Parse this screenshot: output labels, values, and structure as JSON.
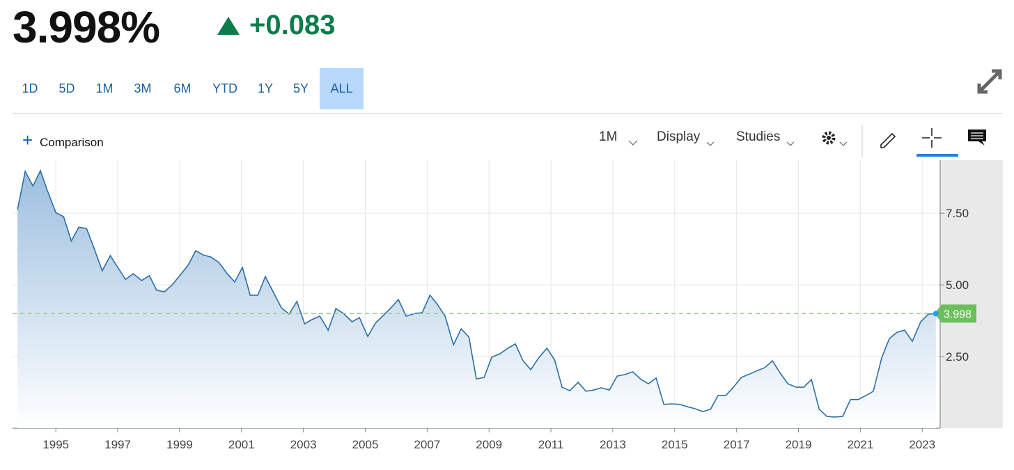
{
  "header": {
    "price": "3.998%",
    "change": "+0.083",
    "ranges": [
      "1D",
      "5D",
      "1M",
      "3M",
      "6M",
      "YTD",
      "1Y",
      "5Y",
      "ALL"
    ],
    "toolbar": {
      "comparison": "Comparison",
      "interval": "1M",
      "display": "Display",
      "studies": "Studies"
    }
  },
  "chart_data": {
    "type": "area",
    "color": "#2a6fa8",
    "x": [
      1993.76,
      1994.01,
      1994.26,
      1994.5,
      1994.73,
      1995.0,
      1995.25,
      1995.5,
      1995.74,
      1995.99,
      1996.24,
      1996.5,
      1996.76,
      1997.0,
      1997.25,
      1997.5,
      1997.77,
      1998.02,
      1998.26,
      1998.51,
      1998.76,
      1999.03,
      1999.28,
      1999.52,
      1999.77,
      2000.02,
      2000.27,
      2000.54,
      2000.78,
      2001.03,
      2001.28,
      2001.53,
      2001.77,
      2002.02,
      2002.29,
      2002.54,
      2002.79,
      2003.04,
      2003.28,
      2003.53,
      2003.8,
      2004.05,
      2004.3,
      2004.57,
      2004.81,
      2005.08,
      2005.33,
      2005.58,
      2005.83,
      2006.07,
      2006.32,
      2006.59,
      2006.84,
      2007.09,
      2007.33,
      2007.58,
      2007.85,
      2008.1,
      2008.35,
      2008.59,
      2008.84,
      2009.09,
      2009.36,
      2009.61,
      2009.85,
      2010.1,
      2010.35,
      2010.6,
      2010.87,
      2011.12,
      2011.36,
      2011.61,
      2011.88,
      2012.13,
      2012.38,
      2012.62,
      2012.89,
      2013.14,
      2013.39,
      2013.64,
      2013.91,
      2014.15,
      2014.4,
      2014.65,
      2014.9,
      2015.17,
      2015.41,
      2015.66,
      2015.91,
      2016.16,
      2016.4,
      2016.65,
      2016.9,
      2017.15,
      2017.42,
      2017.67,
      2017.91,
      2018.16,
      2018.41,
      2018.66,
      2018.93,
      2019.17,
      2019.42,
      2019.67,
      2019.92,
      2020.16,
      2020.43,
      2020.68,
      2020.93,
      2021.18,
      2021.42,
      2021.69,
      2021.94,
      2022.19,
      2022.43,
      2022.68,
      2022.95,
      2023.2,
      2023.44
    ],
    "values": [
      7.62,
      8.96,
      8.45,
      8.98,
      8.28,
      7.52,
      7.38,
      6.53,
      7.01,
      6.97,
      6.26,
      5.49,
      6.02,
      5.61,
      5.19,
      5.39,
      5.15,
      5.32,
      4.81,
      4.76,
      5.0,
      5.36,
      5.7,
      6.19,
      6.04,
      5.97,
      5.78,
      5.39,
      5.1,
      5.61,
      4.64,
      4.64,
      5.29,
      4.76,
      4.2,
      3.98,
      4.42,
      3.64,
      3.79,
      3.91,
      3.42,
      4.17,
      4.0,
      3.71,
      3.86,
      3.2,
      3.67,
      3.93,
      4.2,
      4.49,
      3.91,
      4.0,
      4.03,
      4.64,
      4.32,
      3.91,
      2.91,
      3.47,
      3.18,
      1.72,
      1.77,
      2.48,
      2.6,
      2.79,
      2.94,
      2.35,
      2.04,
      2.45,
      2.79,
      2.38,
      1.43,
      1.31,
      1.6,
      1.29,
      1.33,
      1.41,
      1.33,
      1.82,
      1.87,
      1.97,
      1.7,
      1.55,
      1.75,
      0.83,
      0.85,
      0.83,
      0.75,
      0.68,
      0.58,
      0.66,
      1.14,
      1.14,
      1.43,
      1.77,
      1.89,
      2.01,
      2.11,
      2.35,
      1.92,
      1.55,
      1.43,
      1.43,
      1.7,
      0.66,
      0.41,
      0.39,
      0.41,
      1.0,
      1.0,
      1.14,
      1.29,
      2.45,
      3.13,
      3.35,
      3.42,
      3.03,
      3.71,
      3.98,
      3.998
    ],
    "current_value": 3.998,
    "xlim": [
      1993.6,
      2023.58
    ],
    "xticks": [
      1995,
      1997,
      1999,
      2001,
      2003,
      2005,
      2007,
      2009,
      2011,
      2013,
      2015,
      2017,
      2019,
      2021,
      2023
    ],
    "ylim": [
      0,
      9.35
    ],
    "yticks": [
      {
        "value": 2.5,
        "label": "2.50"
      },
      {
        "value": 5,
        "label": "5.00"
      },
      {
        "value": 7.5,
        "label": "7.50"
      }
    ],
    "grid": true
  }
}
